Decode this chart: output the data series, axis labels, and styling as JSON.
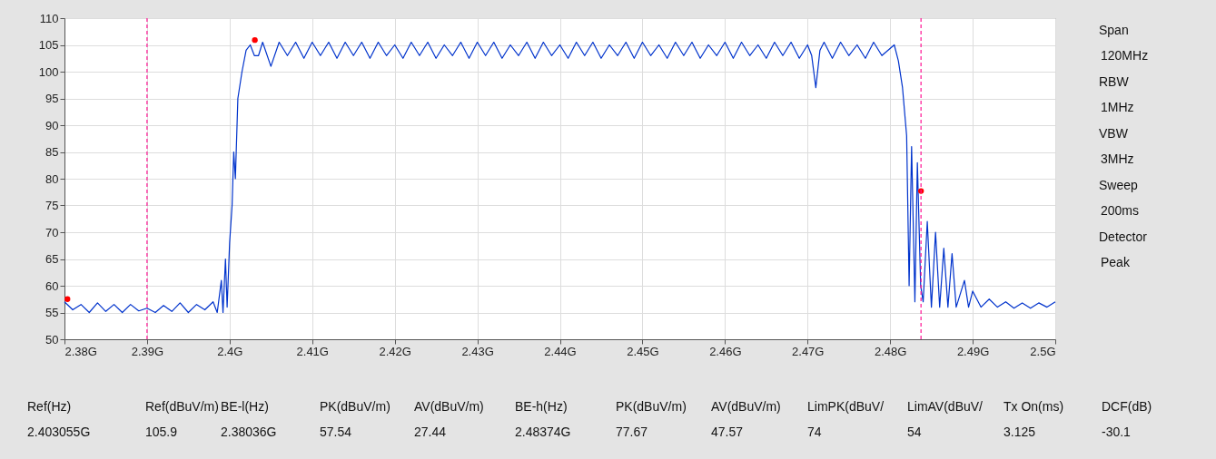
{
  "chart_data": {
    "type": "line",
    "xlim": [
      2.38,
      2.5
    ],
    "ylim": [
      50,
      110
    ],
    "xticks": [
      {
        "value": 2.38,
        "label": "2.38G"
      },
      {
        "value": 2.39,
        "label": "2.39G"
      },
      {
        "value": 2.4,
        "label": "2.4G"
      },
      {
        "value": 2.41,
        "label": "2.41G"
      },
      {
        "value": 2.42,
        "label": "2.42G"
      },
      {
        "value": 2.43,
        "label": "2.43G"
      },
      {
        "value": 2.44,
        "label": "2.44G"
      },
      {
        "value": 2.45,
        "label": "2.45G"
      },
      {
        "value": 2.46,
        "label": "2.46G"
      },
      {
        "value": 2.47,
        "label": "2.47G"
      },
      {
        "value": 2.48,
        "label": "2.48G"
      },
      {
        "value": 2.49,
        "label": "2.49G"
      },
      {
        "value": 2.5,
        "label": "2.5G"
      }
    ],
    "yticks": [
      50,
      55,
      60,
      65,
      70,
      75,
      80,
      85,
      90,
      95,
      100,
      105,
      110
    ],
    "grid": true,
    "series": [
      {
        "color": "#0033cc",
        "marker": "none",
        "x": [
          2.38,
          2.381,
          2.382,
          2.383,
          2.384,
          2.385,
          2.386,
          2.387,
          2.388,
          2.389,
          2.39,
          2.391,
          2.392,
          2.393,
          2.394,
          2.395,
          2.396,
          2.397,
          2.398,
          2.3985,
          2.399,
          2.3992,
          2.3995,
          2.3997,
          2.4,
          2.4003,
          2.4005,
          2.4007,
          2.401,
          2.4015,
          2.402,
          2.4025,
          2.403,
          2.4035,
          2.404,
          2.405,
          2.406,
          2.407,
          2.408,
          2.409,
          2.41,
          2.411,
          2.412,
          2.413,
          2.414,
          2.415,
          2.416,
          2.417,
          2.418,
          2.419,
          2.42,
          2.421,
          2.422,
          2.423,
          2.424,
          2.425,
          2.426,
          2.427,
          2.428,
          2.429,
          2.43,
          2.431,
          2.432,
          2.433,
          2.434,
          2.435,
          2.436,
          2.437,
          2.438,
          2.439,
          2.44,
          2.441,
          2.442,
          2.443,
          2.444,
          2.445,
          2.446,
          2.447,
          2.448,
          2.449,
          2.45,
          2.451,
          2.452,
          2.453,
          2.454,
          2.455,
          2.456,
          2.457,
          2.458,
          2.459,
          2.46,
          2.461,
          2.462,
          2.463,
          2.464,
          2.465,
          2.466,
          2.467,
          2.468,
          2.469,
          2.47,
          2.4705,
          2.471,
          2.4715,
          2.472,
          2.473,
          2.474,
          2.475,
          2.476,
          2.477,
          2.478,
          2.479,
          2.4805,
          2.481,
          2.4815,
          2.482,
          2.4823,
          2.4826,
          2.483,
          2.4833,
          2.4837,
          2.484,
          2.4845,
          2.485,
          2.4855,
          2.486,
          2.4865,
          2.487,
          2.4875,
          2.488,
          2.489,
          2.4895,
          2.49,
          2.491,
          2.492,
          2.493,
          2.494,
          2.495,
          2.496,
          2.497,
          2.498,
          2.499,
          2.5
        ],
        "values": [
          57,
          55.5,
          56.5,
          55,
          56.8,
          55.2,
          56.5,
          55,
          56.5,
          55.3,
          55.8,
          55,
          56.3,
          55.2,
          56.8,
          55,
          56.5,
          55.5,
          57,
          55,
          61,
          55,
          65,
          56,
          68,
          75,
          85,
          80,
          95,
          100,
          104,
          105,
          103,
          103,
          105.5,
          101,
          105.5,
          103,
          105.5,
          102.5,
          105.5,
          103,
          105.5,
          102.5,
          105.5,
          103,
          105.5,
          102.5,
          105.5,
          103,
          105,
          102.5,
          105.5,
          103,
          105.5,
          102.5,
          105,
          103,
          105.5,
          102.5,
          105.5,
          103,
          105.5,
          102.5,
          105,
          103,
          105.5,
          102.5,
          105.5,
          103,
          105,
          102.5,
          105.5,
          103,
          105.5,
          102.5,
          105,
          103,
          105.5,
          102.5,
          105.5,
          103,
          105,
          102.5,
          105.5,
          103,
          105.5,
          102.5,
          105,
          103,
          105.5,
          102.5,
          105.5,
          103,
          105,
          102.5,
          105.5,
          103,
          105.5,
          102.5,
          105,
          103,
          97,
          104,
          105.5,
          102.5,
          105.5,
          103,
          105,
          102.5,
          105.5,
          103,
          105,
          102,
          97,
          88,
          60,
          86,
          57,
          83,
          60,
          57,
          72,
          56,
          70,
          56,
          67,
          56,
          66,
          56,
          61,
          56,
          59,
          56,
          57.5,
          56,
          57,
          55.8,
          56.8,
          55.8,
          56.8,
          56,
          57
        ]
      },
      {
        "type": "scatter",
        "color": "#ff0000",
        "marker": "circle",
        "x": [
          2.38036,
          2.403055,
          2.48374
        ],
        "values": [
          57.5,
          105.9,
          77.7
        ]
      }
    ],
    "ref_lines": [
      {
        "axis": "x",
        "value": 2.39,
        "color": "#ff1493",
        "line_style": "dashed"
      },
      {
        "axis": "x",
        "value": 2.48374,
        "color": "#ff1493",
        "line_style": "dashed"
      }
    ],
    "annotations": [
      "Span",
      "120MHz",
      "RBW",
      "1MHz",
      "VBW",
      "3MHz",
      "Sweep",
      "200ms",
      "Detector",
      "Peak",
      "Ref(Hz)",
      "Ref(dBuV/m)",
      "BE-l(Hz)",
      "PK(dBuV/m)",
      "AV(dBuV/m)",
      "BE-h(Hz)",
      "PK(dBuV/m)",
      "AV(dBuV/m)",
      "LimPK(dBuV/",
      "LimAV(dBuV/",
      "Tx On(ms)",
      "DCF(dB)",
      "2.403055G",
      "105.9",
      "2.38036G",
      "57.54",
      "27.44",
      "2.48374G",
      "77.67",
      "47.57",
      "74",
      "54",
      "3.125",
      "-30.1"
    ]
  }
}
